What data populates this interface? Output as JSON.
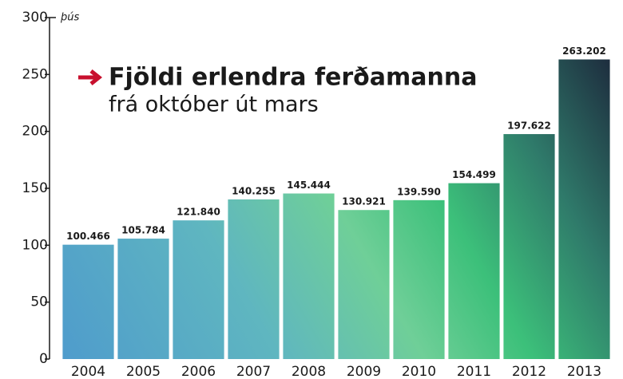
{
  "chart_data": {
    "type": "bar",
    "title": "Fjöldi erlendra ferðamanna",
    "subtitle": "frá október út mars",
    "y_unit": "þús",
    "categories": [
      "2004",
      "2005",
      "2006",
      "2007",
      "2008",
      "2009",
      "2010",
      "2011",
      "2012",
      "2013"
    ],
    "values": [
      100.466,
      105.784,
      121.84,
      140.255,
      145.444,
      130.921,
      139.59,
      154.499,
      197.622,
      263.202
    ],
    "value_labels": [
      "100.466",
      "105.784",
      "121.840",
      "140.255",
      "145.444",
      "130.921",
      "139.590",
      "154.499",
      "197.622",
      "263.202"
    ],
    "ylim": [
      0,
      300
    ],
    "yticks": [
      0,
      50,
      100,
      150,
      200,
      250,
      300
    ],
    "grid": false
  }
}
